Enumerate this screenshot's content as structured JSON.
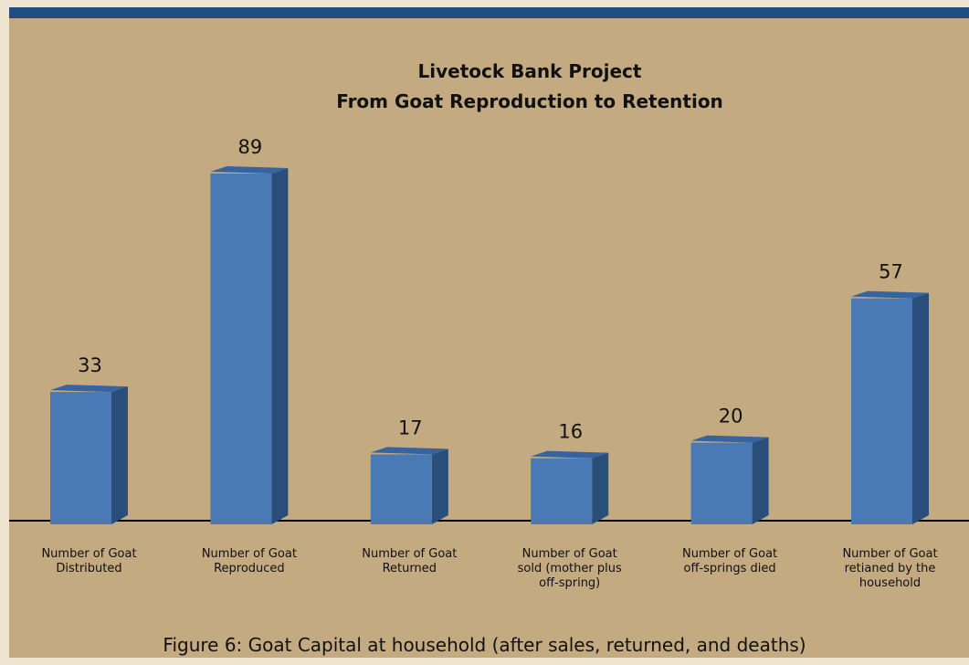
{
  "chart_data": {
    "type": "bar3d",
    "title": "Livetock Bank Project\nFrom Goat Reproduction to Retention",
    "caption": "Figure 6: Goat Capital at household (after sales, returned, and deaths)",
    "categories": [
      "Number of Goat\nDistributed",
      "Number of Goat\nReproduced",
      "Number of Goat\nReturned",
      "Number of Goat\nsold (mother plus\noff-spring)",
      "Number of Goat\noff-springs died",
      "Number of Goat\nretianed by the\nhousehold"
    ],
    "values": [
      33,
      89,
      17,
      16,
      20,
      57
    ],
    "color": "#4a7ab6",
    "ylim": [
      0,
      100
    ]
  }
}
